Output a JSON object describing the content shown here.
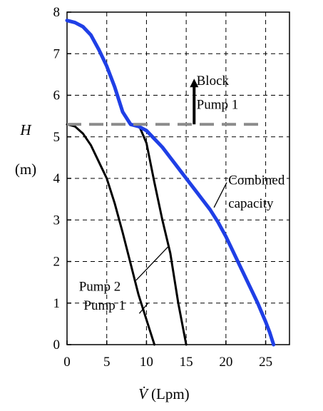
{
  "chart_data": {
    "type": "line",
    "title": "",
    "xlabel": "V̇",
    "xlabel_unit": "(Lpm)",
    "ylabel": "H",
    "ylabel_unit": "(m)",
    "xlim": [
      0,
      28
    ],
    "ylim": [
      0,
      8
    ],
    "xticks": [
      0,
      5,
      10,
      15,
      20,
      25
    ],
    "yticks": [
      0,
      1,
      2,
      3,
      4,
      5,
      6,
      7,
      8
    ],
    "grid": true,
    "colors": {
      "combined": "#1f3fe6",
      "pump": "#000000",
      "block_line": "#8c8c8c",
      "grid": "#000000"
    },
    "series": [
      {
        "key": "pump1",
        "x": [
          0,
          1,
          2,
          3,
          4,
          5,
          6,
          7,
          8,
          9,
          10,
          10.5,
          11
        ],
        "y": [
          5.3,
          5.25,
          5.08,
          4.8,
          4.4,
          4.0,
          3.4,
          2.7,
          1.95,
          1.2,
          0.6,
          0.3,
          0
        ]
      },
      {
        "key": "pump2",
        "x": [
          9,
          10,
          11,
          12,
          13,
          13.5,
          14,
          14.5,
          15
        ],
        "y": [
          5.3,
          4.85,
          3.9,
          3.0,
          2.2,
          1.6,
          1.0,
          0.5,
          0
        ]
      },
      {
        "key": "combined",
        "x": [
          0,
          1,
          2,
          3,
          4,
          5,
          6,
          7,
          8,
          9,
          10,
          11,
          12,
          13,
          14,
          15,
          16,
          17,
          18,
          19,
          20,
          21,
          22,
          23,
          24,
          25,
          25.5,
          26
        ],
        "y": [
          7.8,
          7.75,
          7.65,
          7.45,
          7.1,
          6.7,
          6.2,
          5.6,
          5.3,
          5.25,
          5.15,
          4.95,
          4.75,
          4.5,
          4.25,
          4.0,
          3.75,
          3.5,
          3.25,
          2.95,
          2.6,
          2.2,
          1.8,
          1.4,
          1.0,
          0.55,
          0.3,
          0
        ]
      }
    ],
    "block_line": {
      "y": 5.3,
      "x_from": 0,
      "x_to": 25
    },
    "arrow": {
      "x": 16,
      "y_from": 5.3,
      "y_to": 6.4
    },
    "annotations": {
      "block": [
        "Block",
        "Pump 1"
      ],
      "combined": [
        "Combined",
        "capacity"
      ],
      "pump2": "Pump 2",
      "pump1": "Pump 1"
    }
  }
}
